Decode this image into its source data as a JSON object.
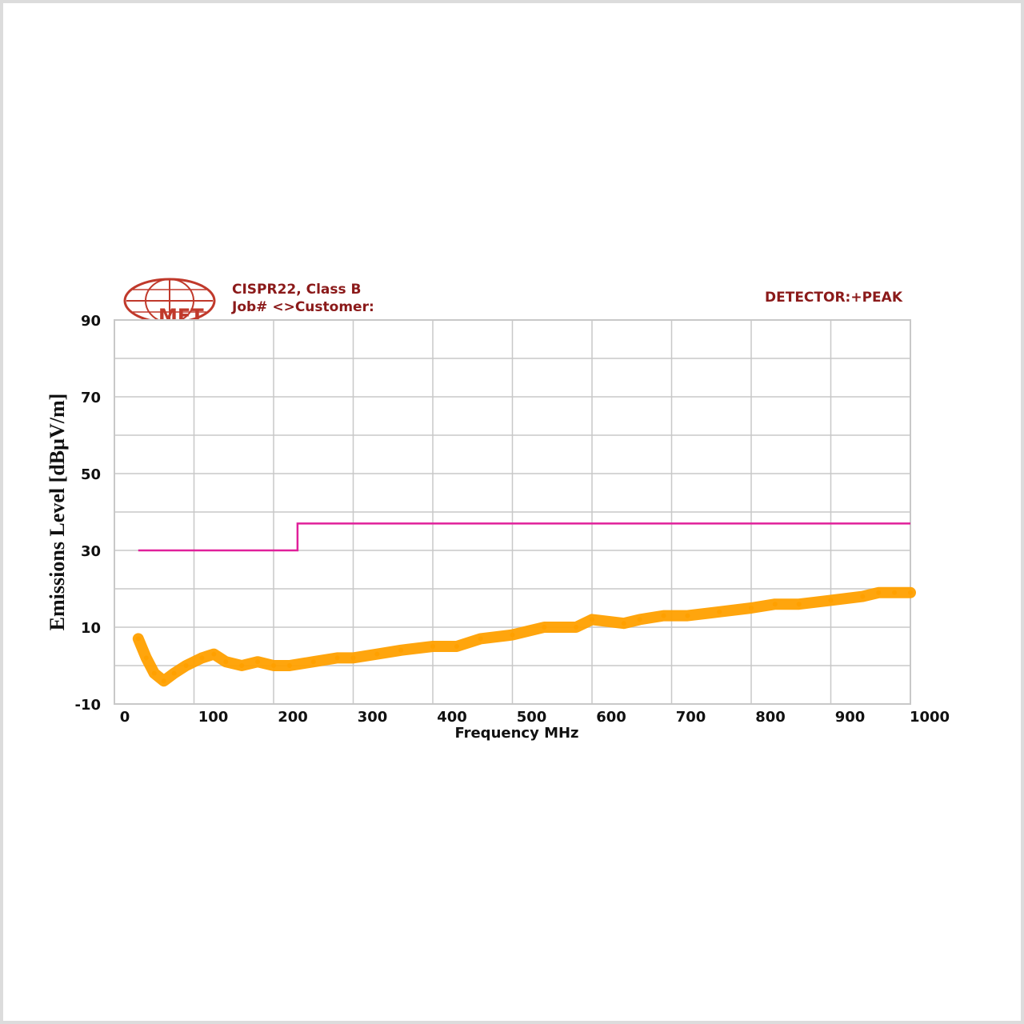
{
  "header": {
    "standard": "CISPR22, Class B",
    "job_line": "Job# <>Customer:",
    "detector": "DETECTOR:+PEAK",
    "logo_text": "MET"
  },
  "colors": {
    "limit": "#e0209a",
    "emission": "#ffa000",
    "grid": "#c8c8c8",
    "header_text": "#8b1a1a",
    "logo": "#c0392b"
  },
  "chart_data": {
    "type": "line",
    "xlabel": "Frequency MHz",
    "ylabel": "Emissions Level [dBµV/m]",
    "xlim": [
      0,
      1000
    ],
    "ylim": [
      -10,
      90
    ],
    "x_ticks": [
      0,
      100,
      200,
      300,
      400,
      500,
      600,
      700,
      800,
      900,
      1000
    ],
    "x_tick_labels": [
      "0",
      "100",
      "200",
      "300",
      "400",
      "500",
      "600",
      "700",
      "800",
      "900",
      "1000"
    ],
    "y_ticks": [
      -10,
      10,
      30,
      50,
      70,
      90
    ],
    "y_tick_labels": [
      "-10",
      "10",
      "30",
      "50",
      "70",
      "90"
    ],
    "grid": true,
    "series": [
      {
        "role": "limit",
        "color": "#e0209a",
        "x": [
          30,
          230,
          230,
          1000
        ],
        "y": [
          30,
          30,
          37,
          37
        ]
      },
      {
        "role": "emission",
        "color": "#ffa000",
        "x": [
          30,
          40,
          50,
          62,
          75,
          90,
          110,
          125,
          140,
          160,
          180,
          200,
          220,
          250,
          280,
          300,
          330,
          360,
          400,
          430,
          460,
          500,
          540,
          580,
          600,
          640,
          660,
          690,
          720,
          760,
          800,
          830,
          860,
          900,
          940,
          960,
          980,
          1000
        ],
        "y": [
          7,
          2,
          -2,
          -4,
          -2,
          0,
          2,
          3,
          1,
          0,
          1,
          0,
          0,
          1,
          2,
          2,
          3,
          4,
          5,
          5,
          7,
          8,
          10,
          10,
          12,
          11,
          12,
          13,
          13,
          14,
          15,
          16,
          16,
          17,
          18,
          19,
          19,
          19
        ]
      }
    ]
  }
}
